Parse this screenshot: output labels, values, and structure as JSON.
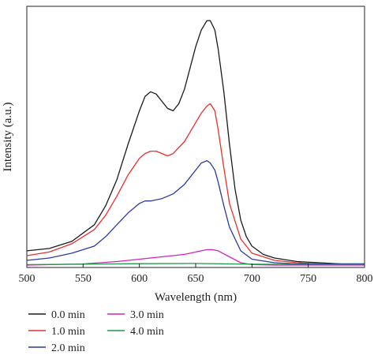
{
  "chart_data": {
    "type": "line",
    "title": "",
    "xlabel": "Wavelength (nm)",
    "ylabel": "Intensity (a.u.)",
    "xlim": [
      500,
      800
    ],
    "ylim": [
      0,
      1.1
    ],
    "x_ticks": [
      500,
      550,
      600,
      650,
      700,
      750,
      800
    ],
    "y_ticks_labeled": false,
    "grid": false,
    "legend_position": "bottom",
    "series": [
      {
        "name": "0.0 min",
        "color": "#1a1a1a",
        "x": [
          500,
          520,
          540,
          560,
          570,
          580,
          590,
          600,
          605,
          610,
          615,
          620,
          625,
          630,
          635,
          640,
          645,
          650,
          655,
          660,
          663,
          667,
          670,
          675,
          680,
          685,
          690,
          695,
          700,
          710,
          720,
          740,
          760,
          780,
          800
        ],
        "y": [
          0.07,
          0.08,
          0.11,
          0.18,
          0.26,
          0.37,
          0.52,
          0.66,
          0.72,
          0.74,
          0.73,
          0.7,
          0.67,
          0.66,
          0.69,
          0.75,
          0.84,
          0.93,
          1.0,
          1.04,
          1.04,
          1.0,
          0.92,
          0.74,
          0.52,
          0.33,
          0.2,
          0.13,
          0.09,
          0.055,
          0.04,
          0.025,
          0.02,
          0.015,
          0.015
        ]
      },
      {
        "name": "1.0 min",
        "color": "#e8302d",
        "x": [
          500,
          520,
          540,
          560,
          570,
          580,
          590,
          600,
          605,
          610,
          615,
          620,
          625,
          630,
          640,
          650,
          655,
          660,
          663,
          667,
          670,
          675,
          680,
          690,
          700,
          720,
          740,
          760,
          780,
          800
        ],
        "y": [
          0.05,
          0.065,
          0.1,
          0.16,
          0.22,
          0.3,
          0.39,
          0.46,
          0.48,
          0.49,
          0.49,
          0.48,
          0.47,
          0.48,
          0.53,
          0.61,
          0.65,
          0.68,
          0.69,
          0.66,
          0.58,
          0.42,
          0.27,
          0.12,
          0.06,
          0.03,
          0.02,
          0.015,
          0.015,
          0.015
        ]
      },
      {
        "name": "2.0 min",
        "color": "#2b3aa0",
        "x": [
          500,
          520,
          540,
          560,
          570,
          580,
          590,
          600,
          605,
          610,
          620,
          630,
          640,
          650,
          655,
          660,
          663,
          667,
          670,
          675,
          680,
          690,
          700,
          720,
          740,
          760,
          780,
          800
        ],
        "y": [
          0.03,
          0.04,
          0.06,
          0.09,
          0.13,
          0.18,
          0.23,
          0.27,
          0.28,
          0.28,
          0.29,
          0.31,
          0.35,
          0.41,
          0.44,
          0.45,
          0.44,
          0.41,
          0.36,
          0.26,
          0.17,
          0.07,
          0.035,
          0.02,
          0.015,
          0.015,
          0.015,
          0.015
        ]
      },
      {
        "name": "3.0 min",
        "color": "#d524b8",
        "x": [
          500,
          550,
          580,
          600,
          620,
          640,
          650,
          660,
          665,
          670,
          680,
          690,
          700,
          720,
          750,
          800
        ],
        "y": [
          0.01,
          0.015,
          0.025,
          0.035,
          0.045,
          0.055,
          0.065,
          0.075,
          0.075,
          0.07,
          0.045,
          0.02,
          0.012,
          0.01,
          0.01,
          0.01
        ]
      },
      {
        "name": "4.0 min",
        "color": "#1f9a4a",
        "x": [
          500,
          550,
          600,
          650,
          700,
          750,
          800
        ],
        "y": [
          0.012,
          0.014,
          0.016,
          0.017,
          0.014,
          0.012,
          0.012
        ]
      }
    ]
  }
}
